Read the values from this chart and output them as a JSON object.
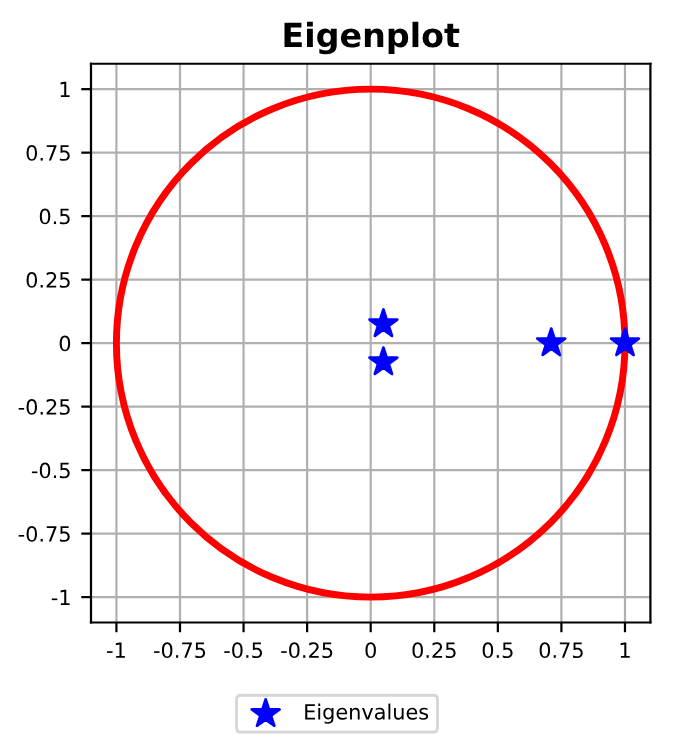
{
  "chart_data": {
    "type": "scatter",
    "title": "Eigenplot",
    "xlim": [
      -1.1,
      1.1
    ],
    "ylim": [
      -1.1,
      1.1
    ],
    "xticks": [
      -1,
      -0.75,
      -0.5,
      -0.25,
      0,
      0.25,
      0.5,
      0.75,
      1
    ],
    "yticks": [
      -1,
      -0.75,
      -0.5,
      -0.25,
      0,
      0.25,
      0.5,
      0.75,
      1
    ],
    "grid": true,
    "legend": "bottom",
    "series": [
      {
        "name": "Eigenvalues",
        "color": "#0000ff",
        "marker": "star",
        "x": [
          0.05,
          0.05,
          0.71,
          1
        ],
        "values": [
          0.075,
          -0.075,
          0,
          0
        ]
      }
    ]
  }
}
